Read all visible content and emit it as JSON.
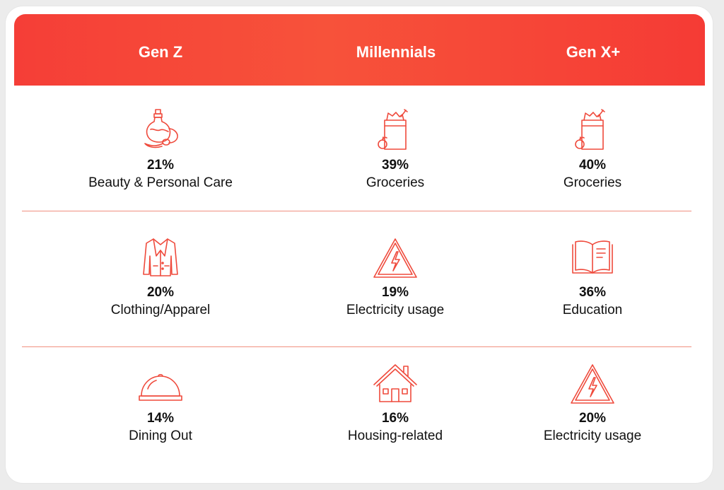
{
  "columns": [
    "Gen Z",
    "Millennials",
    "Gen X+"
  ],
  "rows": [
    [
      {
        "icon": "perfume-icon",
        "pct": "21%",
        "label": "Beauty & Personal Care"
      },
      {
        "icon": "grocery-bag-icon",
        "pct": "39%",
        "label": "Groceries"
      },
      {
        "icon": "grocery-bag-icon",
        "pct": "40%",
        "label": "Groceries"
      }
    ],
    [
      {
        "icon": "jacket-icon",
        "pct": "20%",
        "label": "Clothing/Apparel"
      },
      {
        "icon": "electricity-warning-icon",
        "pct": "19%",
        "label": "Electricity usage"
      },
      {
        "icon": "open-book-icon",
        "pct": "36%",
        "label": "Education"
      }
    ],
    [
      {
        "icon": "cloche-icon",
        "pct": "14%",
        "label": "Dining Out"
      },
      {
        "icon": "house-icon",
        "pct": "16%",
        "label": "Housing-related"
      },
      {
        "icon": "electricity-warning-icon",
        "pct": "20%",
        "label": "Electricity usage"
      }
    ]
  ],
  "colors": {
    "accent": "#f44a38",
    "icon_stroke": "#ef4a3c",
    "divider": "#f0907f"
  }
}
